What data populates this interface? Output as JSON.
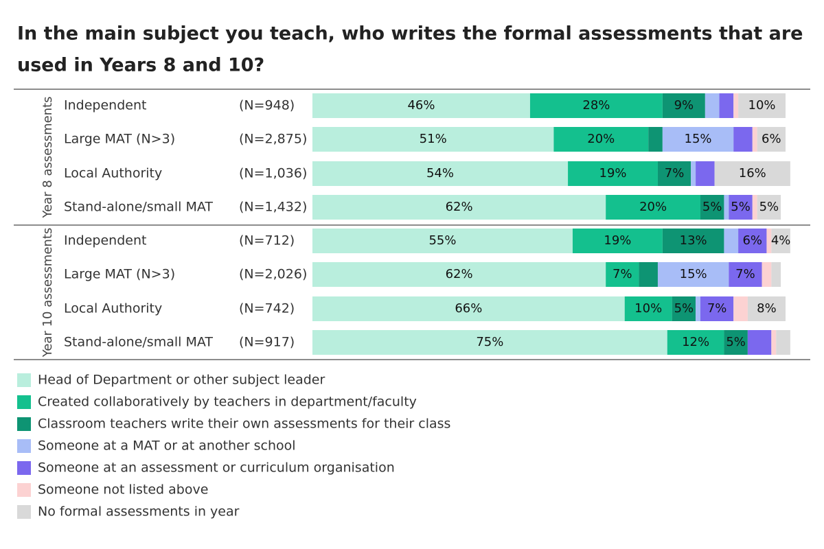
{
  "chart_data": {
    "type": "stacked-bar",
    "title_lines": [
      "In the main subject you teach, who writes the formal assessments that are",
      "used in Years 8 and 10?"
    ],
    "groups": [
      "Year 8 assessments",
      "Year 10 assessments"
    ],
    "categories": [
      "Independent",
      "Large MAT (N>3)",
      "Local Authority",
      "Stand-alone/small MAT",
      "Independent",
      "Large MAT (N>3)",
      "Local Authority",
      "Stand-alone/small MAT"
    ],
    "n_labels": [
      "(N=948)",
      "(N=2,875)",
      "(N=1,036)",
      "(N=1,432)",
      "(N=712)",
      "(N=2,026)",
      "(N=742)",
      "(N=917)"
    ],
    "xlim": [
      0,
      100
    ],
    "series": [
      {
        "name": "Head of Department or other subject leader",
        "color": "#b9eedd",
        "values": [
          46,
          51,
          54,
          62,
          55,
          62,
          66,
          75
        ],
        "value_labels": [
          "46%",
          "51%",
          "54%",
          "62%",
          "55%",
          "62%",
          "66%",
          "75%"
        ]
      },
      {
        "name": "Created collaboratively by teachers in department/faculty",
        "color": "#14c08e",
        "values": [
          28,
          20,
          19,
          20,
          19,
          7,
          10,
          12
        ],
        "value_labels": [
          "28%",
          "20%",
          "19%",
          "20%",
          "19%",
          "7%",
          "10%",
          "12%"
        ]
      },
      {
        "name": "Classroom teachers write their own assessments for their class",
        "color": "#0e9473",
        "values": [
          9,
          3,
          7,
          5,
          13,
          4,
          5,
          5
        ],
        "value_labels": [
          "9%",
          null,
          "7%",
          "5%",
          "13%",
          null,
          "5%",
          "5%"
        ]
      },
      {
        "name": "Someone at a MAT or at another school",
        "color": "#a8bdf7",
        "values": [
          3,
          15,
          1,
          1,
          3,
          15,
          1,
          0
        ],
        "value_labels": [
          null,
          "15%",
          null,
          null,
          null,
          "15%",
          null,
          null
        ]
      },
      {
        "name": "Someone at an assessment or curriculum organisation",
        "color": "#7b68ee",
        "values": [
          3,
          4,
          4,
          5,
          6,
          7,
          7,
          5
        ],
        "value_labels": [
          null,
          null,
          null,
          "5%",
          "6%",
          "7%",
          "7%",
          null
        ]
      },
      {
        "name": "Someone not listed above",
        "color": "#fcd2d2",
        "values": [
          1,
          1,
          0,
          1,
          1,
          2,
          3,
          1
        ],
        "value_labels": [
          null,
          null,
          null,
          null,
          null,
          null,
          null,
          null
        ]
      },
      {
        "name": "No formal assessments in year",
        "color": "#d9d9d9",
        "values": [
          10,
          6,
          16,
          5,
          4,
          2,
          8,
          3
        ],
        "value_labels": [
          "10%",
          "6%",
          "16%",
          "5%",
          "4%",
          null,
          "8%",
          null
        ]
      }
    ]
  }
}
